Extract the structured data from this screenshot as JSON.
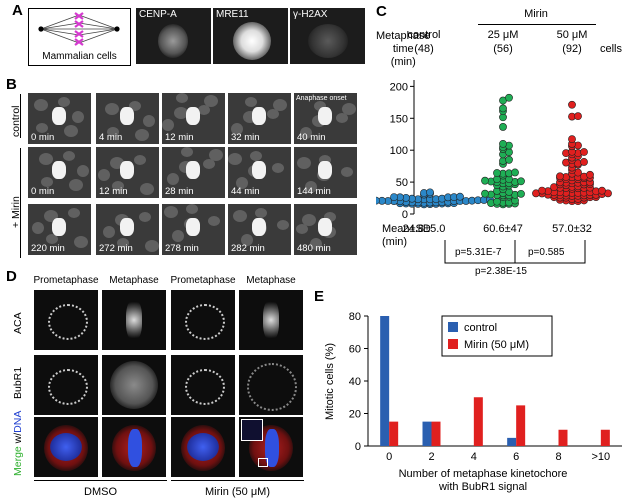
{
  "panelA": {
    "label": "A",
    "schematic_caption": "Mammalian cells",
    "images": [
      "CENP-A",
      "MRE11",
      "γ-H2AX"
    ]
  },
  "panelB": {
    "label": "B",
    "row_control": "control",
    "row_mirin": "+ Mirin",
    "control_times": [
      "0 min",
      "4 min",
      "12 min",
      "32 min",
      "40 min"
    ],
    "anaphase_label": "Anaphase onset",
    "mirin_times_1": [
      "0 min",
      "12 min",
      "28 min",
      "44 min",
      "144 min"
    ],
    "mirin_times_2": [
      "220 min",
      "272 min",
      "278 min",
      "282 min",
      "480 min"
    ]
  },
  "panelC": {
    "label": "C",
    "mirin_header": "Mirin",
    "metaphase_time_label": "Metaphase\ntime\n(min)",
    "cells_label": "cells",
    "groups": [
      {
        "name": "control",
        "n": "(48)",
        "mean_sd": "24.8±5.0"
      },
      {
        "name": "25 μM",
        "n": "(56)",
        "mean_sd": "60.6±47"
      },
      {
        "name": "50 μM",
        "n": "(92)",
        "mean_sd": "57.0±32"
      }
    ],
    "mean_label": "Mean±SD\n(min)",
    "pvalues": [
      "p=5.31E-7",
      "p=0.585",
      "p=2.38E-15"
    ],
    "chart_data": {
      "type": "scatter",
      "yticks": [
        0,
        50,
        100,
        150,
        200
      ],
      "ylim": [
        0,
        210
      ],
      "colors": {
        "control": "#2b87c8",
        "m25": "#1fae55",
        "m50": "#e0201f"
      }
    }
  },
  "panelD": {
    "label": "D",
    "col_headers": [
      "Prometaphase",
      "Metaphase",
      "Prometaphase",
      "Metaphase"
    ],
    "rows": [
      "ACA",
      "BubR1",
      "Merge w/DNA"
    ],
    "merge_parts": {
      "merge": "Merge",
      "w": " w/",
      "dna": "DNA"
    },
    "bottom_labels": [
      "DMSO",
      "Mirin (50 μM)"
    ]
  },
  "panelE": {
    "label": "E",
    "chart_data": {
      "type": "bar",
      "categories": [
        "0",
        "2",
        "4",
        "6",
        "8",
        ">10"
      ],
      "series": [
        {
          "name": "control",
          "values": [
            80,
            15,
            0,
            5,
            0,
            0
          ],
          "color": "#2a5fb0"
        },
        {
          "name": "Mirin (50 μM)",
          "values": [
            15,
            15,
            30,
            25,
            10,
            10
          ],
          "color": "#e0201f"
        }
      ],
      "ylabel": "Mitotic cells (%)",
      "xlabel": "Number of metaphase kinetochore\nwith BubR1 signal",
      "ylim": [
        0,
        80
      ],
      "yticks": [
        0,
        20,
        40,
        60,
        80
      ]
    }
  }
}
